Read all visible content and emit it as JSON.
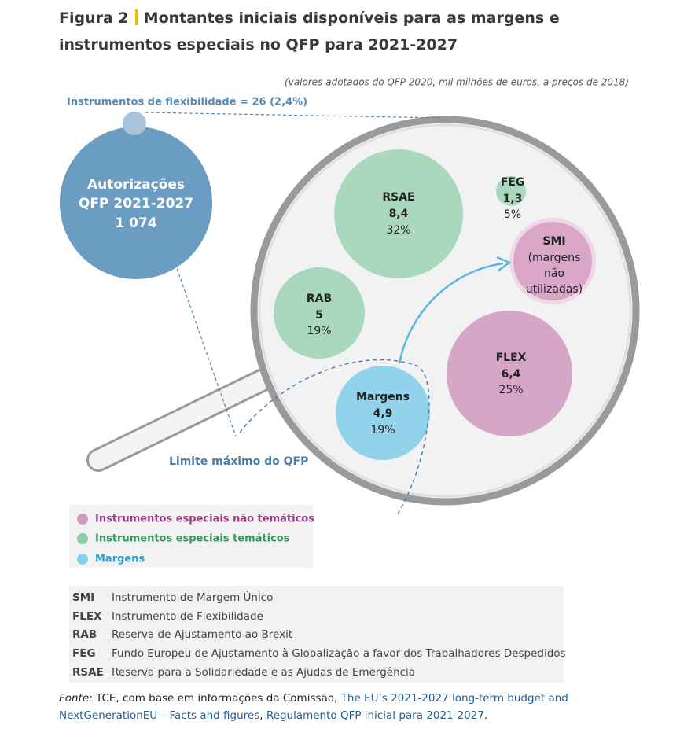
{
  "title": {
    "label": "Figura 2",
    "text": "Montantes iniciais disponíveis para as margens e instrumentos especiais no QFP para 2021-2027"
  },
  "subtitle": "(valores adotados do QFP 2020, mil milhões de euros, a preços de 2018)",
  "flexibility_note": "Instrumentos de flexibilidade = 26 (2,4%)",
  "commitments": [
    "Autorizações",
    "QFP 2021-2027",
    "1 074"
  ],
  "bubbles": [
    {
      "name": "RSAE",
      "value": "8,4",
      "share": "32%"
    },
    {
      "name": "FEG",
      "value": "1,3",
      "share": "5%"
    },
    {
      "name": "SMI",
      "lines": [
        "(margens",
        "não",
        "utilizadas)"
      ]
    },
    {
      "name": "RAB",
      "value": "5",
      "share": "19%"
    },
    {
      "name": "FLEX",
      "value": "6,4",
      "share": "25%"
    },
    {
      "name": "Margens",
      "value": "4,9",
      "share": "19%"
    }
  ],
  "ceiling_label": "Limite máximo do QFP",
  "legend": [
    "Instrumentos especiais não temáticos",
    "Instrumentos especiais temáticos",
    "Margens"
  ],
  "glossary": [
    {
      "abbr": "SMI",
      "text": "Instrumento de Margem Único"
    },
    {
      "abbr": "FLEX",
      "text": "Instrumento de Flexibilidade"
    },
    {
      "abbr": "RAB",
      "text": "Reserva de Ajustamento ao Brexit"
    },
    {
      "abbr": "FEG",
      "text": "Fundo Europeu de Ajustamento à Globalização a favor dos Trabalhadores Despedidos"
    },
    {
      "abbr": "RSAE",
      "text": "Reserva para a Solidariedade e as Ajudas de Emergência"
    }
  ],
  "source": {
    "prefix": "Fonte:",
    "text": " TCE, com base em informações da Comissão, ",
    "link1": "The EU’s 2021-2027 long-term budget and NextGenerationEU – Facts and figures",
    "separator": ", ",
    "link2": "Regulamento QFP inicial para 2021-2027",
    "end": "."
  }
}
